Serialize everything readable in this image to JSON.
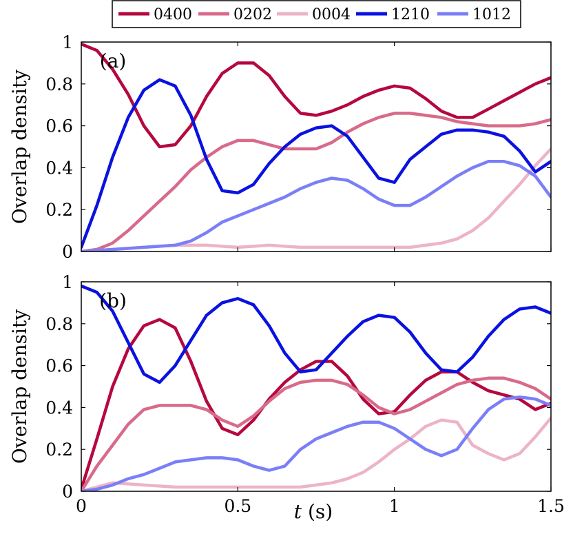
{
  "legend": {
    "entries": [
      {
        "label": "0400",
        "color": "#b5083f"
      },
      {
        "label": "0202",
        "color": "#d86a8a"
      },
      {
        "label": "0004",
        "color": "#ecb4c6"
      },
      {
        "label": "1210",
        "color": "#0a12e0"
      },
      {
        "label": "1012",
        "color": "#7b7ff7"
      }
    ]
  },
  "chart_data": [
    {
      "type": "line",
      "panel_label": "(a)",
      "xlabel": "",
      "ylabel": "Overlap density",
      "xlim": [
        0,
        1.5
      ],
      "ylim": [
        0,
        1
      ],
      "xticks": [
        0,
        0.5,
        1,
        1.5
      ],
      "yticks": [
        0,
        0.2,
        0.4,
        0.6,
        0.8,
        1
      ],
      "show_xtick_labels": false,
      "grid": false,
      "series": [
        {
          "name": "0400",
          "color": "#b5083f",
          "x": [
            0,
            0.05,
            0.1,
            0.15,
            0.2,
            0.25,
            0.3,
            0.35,
            0.4,
            0.45,
            0.5,
            0.55,
            0.6,
            0.65,
            0.7,
            0.75,
            0.8,
            0.85,
            0.9,
            0.95,
            1.0,
            1.05,
            1.1,
            1.15,
            1.2,
            1.25,
            1.3,
            1.35,
            1.4,
            1.45,
            1.5
          ],
          "y": [
            0.99,
            0.96,
            0.87,
            0.75,
            0.6,
            0.5,
            0.51,
            0.6,
            0.74,
            0.85,
            0.9,
            0.9,
            0.84,
            0.74,
            0.66,
            0.65,
            0.67,
            0.7,
            0.74,
            0.77,
            0.79,
            0.78,
            0.73,
            0.67,
            0.64,
            0.64,
            0.68,
            0.72,
            0.76,
            0.8,
            0.83
          ]
        },
        {
          "name": "0202",
          "color": "#d86a8a",
          "x": [
            0,
            0.05,
            0.1,
            0.15,
            0.2,
            0.25,
            0.3,
            0.35,
            0.4,
            0.45,
            0.5,
            0.55,
            0.6,
            0.65,
            0.7,
            0.75,
            0.8,
            0.85,
            0.9,
            0.95,
            1.0,
            1.05,
            1.1,
            1.15,
            1.2,
            1.25,
            1.3,
            1.35,
            1.4,
            1.45,
            1.5
          ],
          "y": [
            0,
            0.01,
            0.04,
            0.1,
            0.17,
            0.24,
            0.31,
            0.39,
            0.45,
            0.5,
            0.53,
            0.53,
            0.51,
            0.49,
            0.49,
            0.49,
            0.52,
            0.57,
            0.61,
            0.64,
            0.66,
            0.66,
            0.65,
            0.64,
            0.62,
            0.61,
            0.6,
            0.6,
            0.6,
            0.61,
            0.63
          ]
        },
        {
          "name": "0004",
          "color": "#ecb4c6",
          "x": [
            0,
            0.1,
            0.2,
            0.3,
            0.4,
            0.5,
            0.6,
            0.7,
            0.8,
            0.9,
            1.0,
            1.05,
            1.1,
            1.15,
            1.2,
            1.25,
            1.3,
            1.35,
            1.4,
            1.45,
            1.5
          ],
          "y": [
            0,
            0.01,
            0.02,
            0.03,
            0.03,
            0.02,
            0.03,
            0.02,
            0.02,
            0.02,
            0.02,
            0.02,
            0.03,
            0.04,
            0.06,
            0.1,
            0.16,
            0.24,
            0.32,
            0.41,
            0.49
          ]
        },
        {
          "name": "1210",
          "color": "#0a12e0",
          "x": [
            0,
            0.05,
            0.1,
            0.15,
            0.2,
            0.25,
            0.3,
            0.35,
            0.4,
            0.45,
            0.5,
            0.55,
            0.6,
            0.65,
            0.7,
            0.75,
            0.8,
            0.85,
            0.9,
            0.95,
            1.0,
            1.05,
            1.1,
            1.15,
            1.2,
            1.25,
            1.3,
            1.35,
            1.4,
            1.45,
            1.5
          ],
          "y": [
            0.02,
            0.22,
            0.45,
            0.64,
            0.77,
            0.82,
            0.79,
            0.65,
            0.44,
            0.29,
            0.28,
            0.32,
            0.42,
            0.5,
            0.56,
            0.59,
            0.6,
            0.55,
            0.45,
            0.35,
            0.33,
            0.44,
            0.5,
            0.56,
            0.58,
            0.58,
            0.57,
            0.55,
            0.48,
            0.38,
            0.43
          ]
        },
        {
          "name": "1012",
          "color": "#7b7ff7",
          "x": [
            0,
            0.1,
            0.2,
            0.3,
            0.35,
            0.4,
            0.45,
            0.5,
            0.55,
            0.6,
            0.65,
            0.7,
            0.75,
            0.8,
            0.85,
            0.9,
            0.95,
            1.0,
            1.05,
            1.1,
            1.15,
            1.2,
            1.25,
            1.3,
            1.35,
            1.4,
            1.45,
            1.5
          ],
          "y": [
            0,
            0.01,
            0.02,
            0.03,
            0.05,
            0.09,
            0.14,
            0.17,
            0.2,
            0.23,
            0.26,
            0.3,
            0.33,
            0.35,
            0.34,
            0.3,
            0.25,
            0.22,
            0.22,
            0.26,
            0.31,
            0.36,
            0.4,
            0.43,
            0.43,
            0.41,
            0.36,
            0.26
          ]
        }
      ]
    },
    {
      "type": "line",
      "panel_label": "(b)",
      "xlabel": "t (s)",
      "ylabel": "Overlap density",
      "xlim": [
        0,
        1.5
      ],
      "ylim": [
        0,
        1
      ],
      "xticks": [
        0,
        0.5,
        1,
        1.5
      ],
      "yticks": [
        0,
        0.2,
        0.4,
        0.6,
        0.8,
        1
      ],
      "show_xtick_labels": true,
      "grid": false,
      "series": [
        {
          "name": "0400",
          "color": "#b5083f",
          "x": [
            0,
            0.05,
            0.1,
            0.15,
            0.2,
            0.25,
            0.3,
            0.35,
            0.4,
            0.45,
            0.5,
            0.55,
            0.6,
            0.65,
            0.7,
            0.75,
            0.8,
            0.85,
            0.9,
            0.95,
            1.0,
            1.05,
            1.1,
            1.15,
            1.2,
            1.25,
            1.3,
            1.35,
            1.4,
            1.45,
            1.5
          ],
          "y": [
            0.01,
            0.25,
            0.5,
            0.68,
            0.79,
            0.82,
            0.78,
            0.62,
            0.43,
            0.3,
            0.27,
            0.34,
            0.44,
            0.52,
            0.58,
            0.62,
            0.62,
            0.55,
            0.44,
            0.37,
            0.38,
            0.46,
            0.53,
            0.57,
            0.57,
            0.52,
            0.48,
            0.46,
            0.44,
            0.39,
            0.42
          ]
        },
        {
          "name": "0202",
          "color": "#d86a8a",
          "x": [
            0,
            0.05,
            0.1,
            0.15,
            0.2,
            0.25,
            0.3,
            0.35,
            0.4,
            0.45,
            0.5,
            0.55,
            0.6,
            0.65,
            0.7,
            0.75,
            0.8,
            0.85,
            0.9,
            0.95,
            1.0,
            1.05,
            1.1,
            1.15,
            1.2,
            1.25,
            1.3,
            1.35,
            1.4,
            1.45,
            1.5
          ],
          "y": [
            0,
            0.12,
            0.22,
            0.32,
            0.39,
            0.41,
            0.41,
            0.41,
            0.39,
            0.34,
            0.31,
            0.36,
            0.43,
            0.49,
            0.52,
            0.53,
            0.53,
            0.51,
            0.46,
            0.4,
            0.37,
            0.39,
            0.43,
            0.47,
            0.51,
            0.53,
            0.54,
            0.54,
            0.52,
            0.49,
            0.44
          ]
        },
        {
          "name": "0004",
          "color": "#ecb4c6",
          "x": [
            0,
            0.1,
            0.2,
            0.3,
            0.4,
            0.5,
            0.6,
            0.7,
            0.8,
            0.85,
            0.9,
            0.95,
            1.0,
            1.05,
            1.1,
            1.15,
            1.2,
            1.25,
            1.3,
            1.35,
            1.4,
            1.45,
            1.5
          ],
          "y": [
            0,
            0.04,
            0.03,
            0.02,
            0.02,
            0.02,
            0.02,
            0.02,
            0.04,
            0.06,
            0.09,
            0.14,
            0.2,
            0.25,
            0.31,
            0.34,
            0.33,
            0.22,
            0.18,
            0.15,
            0.18,
            0.26,
            0.35
          ]
        },
        {
          "name": "1210",
          "color": "#0a12e0",
          "x": [
            0,
            0.05,
            0.1,
            0.15,
            0.2,
            0.25,
            0.3,
            0.35,
            0.4,
            0.45,
            0.5,
            0.55,
            0.6,
            0.65,
            0.7,
            0.75,
            0.8,
            0.85,
            0.9,
            0.95,
            1.0,
            1.05,
            1.1,
            1.15,
            1.2,
            1.25,
            1.3,
            1.35,
            1.4,
            1.45,
            1.5
          ],
          "y": [
            0.98,
            0.95,
            0.86,
            0.71,
            0.56,
            0.52,
            0.6,
            0.72,
            0.84,
            0.9,
            0.92,
            0.89,
            0.79,
            0.66,
            0.57,
            0.58,
            0.66,
            0.74,
            0.81,
            0.84,
            0.83,
            0.76,
            0.66,
            0.58,
            0.57,
            0.64,
            0.74,
            0.82,
            0.87,
            0.88,
            0.85
          ]
        },
        {
          "name": "1012",
          "color": "#7b7ff7",
          "x": [
            0,
            0.05,
            0.1,
            0.15,
            0.2,
            0.25,
            0.3,
            0.35,
            0.4,
            0.45,
            0.5,
            0.55,
            0.6,
            0.65,
            0.7,
            0.75,
            0.8,
            0.85,
            0.9,
            0.95,
            1.0,
            1.05,
            1.1,
            1.15,
            1.2,
            1.25,
            1.3,
            1.35,
            1.4,
            1.45,
            1.5
          ],
          "y": [
            0,
            0.01,
            0.03,
            0.06,
            0.08,
            0.11,
            0.14,
            0.15,
            0.16,
            0.16,
            0.15,
            0.12,
            0.1,
            0.12,
            0.2,
            0.25,
            0.28,
            0.31,
            0.33,
            0.33,
            0.3,
            0.25,
            0.2,
            0.17,
            0.2,
            0.3,
            0.39,
            0.44,
            0.45,
            0.44,
            0.41
          ]
        }
      ]
    }
  ]
}
